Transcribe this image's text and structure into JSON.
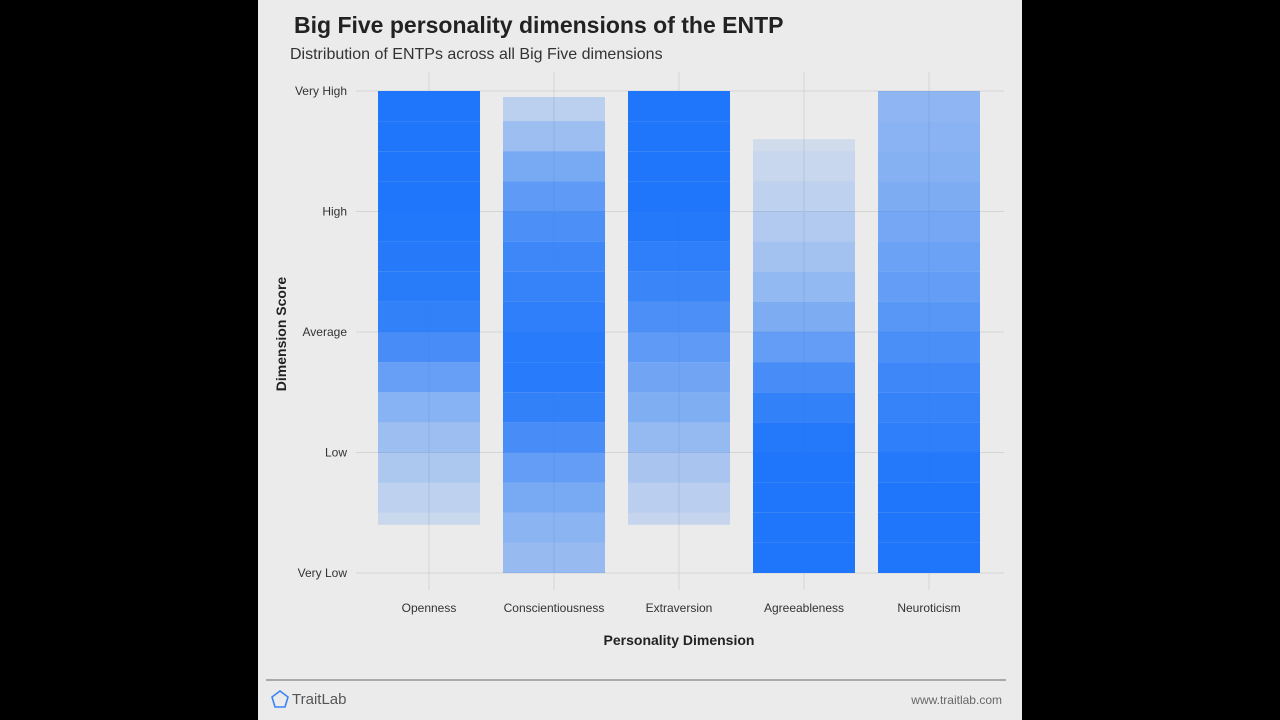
{
  "chart_data": {
    "type": "scatter",
    "title": "Big Five personality dimensions of the ENTP",
    "subtitle": "Distribution of ENTPs across all Big Five dimensions",
    "xlabel": "Personality Dimension",
    "ylabel": "Dimension Score",
    "categories": [
      "Openness",
      "Conscientiousness",
      "Extraversion",
      "Agreeableness",
      "Neuroticism"
    ],
    "y_ticks": [
      {
        "value": 1,
        "label": "Very Low"
      },
      {
        "value": 2,
        "label": "Low"
      },
      {
        "value": 3,
        "label": "Average"
      },
      {
        "value": 4,
        "label": "High"
      },
      {
        "value": 5,
        "label": "Very High"
      }
    ],
    "ylim": [
      1,
      5
    ],
    "grid": true,
    "color": "#1f76fa",
    "density_levels": [
      1.0,
      1.25,
      1.5,
      1.75,
      2.0,
      2.25,
      2.5,
      2.75,
      3.0,
      3.25,
      3.5,
      3.75,
      4.0,
      4.25,
      4.5,
      4.75,
      5.0
    ],
    "series": [
      {
        "category": "Openness",
        "min": 1.4,
        "max": 5.0,
        "density": [
          0,
          0.02,
          0.08,
          0.15,
          0.25,
          0.35,
          0.5,
          0.7,
          0.85,
          0.92,
          0.96,
          0.98,
          1,
          1,
          1,
          1,
          1
        ]
      },
      {
        "category": "Conscientiousness",
        "min": 1.0,
        "max": 4.95,
        "density": [
          0.3,
          0.35,
          0.45,
          0.55,
          0.7,
          0.85,
          0.95,
          0.95,
          0.95,
          0.9,
          0.85,
          0.8,
          0.7,
          0.6,
          0.4,
          0.2,
          0.05
        ]
      },
      {
        "category": "Extraversion",
        "min": 1.4,
        "max": 5.0,
        "density": [
          0,
          0.03,
          0.1,
          0.18,
          0.28,
          0.4,
          0.5,
          0.6,
          0.7,
          0.8,
          0.9,
          0.95,
          1,
          1,
          1,
          1,
          1
        ]
      },
      {
        "category": "Agreeableness",
        "min": 1.0,
        "max": 4.6,
        "density": [
          1,
          1,
          1,
          1,
          1,
          0.95,
          0.85,
          0.7,
          0.55,
          0.4,
          0.3,
          0.22,
          0.15,
          0.08,
          0.03,
          0,
          0
        ]
      },
      {
        "category": "Neuroticism",
        "min": 1.0,
        "max": 5.0,
        "density": [
          1,
          1,
          1,
          1,
          0.95,
          0.9,
          0.85,
          0.8,
          0.72,
          0.65,
          0.6,
          0.55,
          0.5,
          0.45,
          0.42,
          0.4,
          0.35
        ]
      }
    ]
  },
  "footer": {
    "brand": "TraitLab",
    "url": "www.traitlab.com"
  }
}
